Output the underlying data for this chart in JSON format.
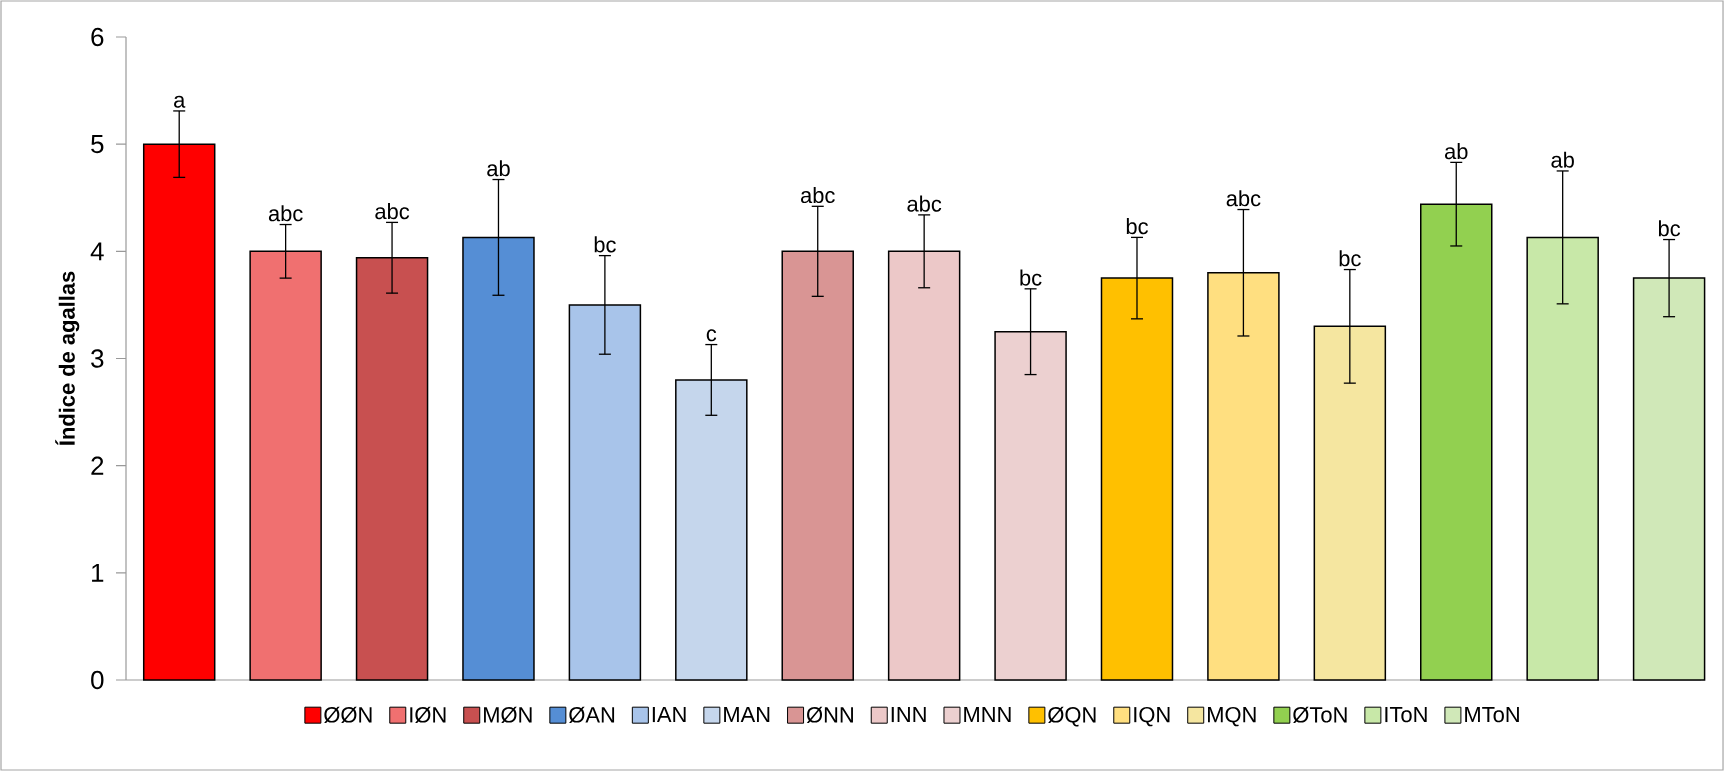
{
  "chart_data": {
    "type": "bar",
    "ylabel": "Índice de agallas",
    "categories": [
      null
    ],
    "ylim": [
      0,
      6
    ],
    "yticks": [
      0,
      1,
      2,
      3,
      4,
      5,
      6
    ],
    "legend": "bottom",
    "grid": false,
    "series": [
      {
        "name": "ØØN",
        "color": "#ff0000",
        "values": [
          5.0
        ],
        "errors": [
          0.31
        ],
        "value_labels": [
          "a"
        ]
      },
      {
        "name": "IØN",
        "color": "#f07070",
        "values": [
          4.0
        ],
        "errors": [
          0.25
        ],
        "value_labels": [
          "abc"
        ]
      },
      {
        "name": "MØN",
        "color": "#c85050",
        "values": [
          3.94
        ],
        "errors": [
          0.33
        ],
        "value_labels": [
          "abc"
        ]
      },
      {
        "name": "ØAN",
        "color": "#558ed5",
        "values": [
          4.13
        ],
        "errors": [
          0.54
        ],
        "value_labels": [
          "ab"
        ]
      },
      {
        "name": "IAN",
        "color": "#a8c4ea",
        "values": [
          3.5
        ],
        "errors": [
          0.46
        ],
        "value_labels": [
          "bc"
        ]
      },
      {
        "name": "MAN",
        "color": "#c5d6ec",
        "values": [
          2.8
        ],
        "errors": [
          0.33
        ],
        "value_labels": [
          "c"
        ]
      },
      {
        "name": "ØNN",
        "color": "#d99594",
        "values": [
          4.0
        ],
        "errors": [
          0.42
        ],
        "value_labels": [
          "abc"
        ]
      },
      {
        "name": "INN",
        "color": "#ecc8c8",
        "values": [
          4.0
        ],
        "errors": [
          0.34
        ],
        "value_labels": [
          "abc"
        ]
      },
      {
        "name": "MNN",
        "color": "#ecd0d0",
        "values": [
          3.25
        ],
        "errors": [
          0.4
        ],
        "value_labels": [
          "bc"
        ]
      },
      {
        "name": "ØQN",
        "color": "#ffc000",
        "values": [
          3.75
        ],
        "errors": [
          0.38
        ],
        "value_labels": [
          "bc"
        ]
      },
      {
        "name": "IQN",
        "color": "#ffdf80",
        "values": [
          3.8
        ],
        "errors": [
          0.59
        ],
        "value_labels": [
          "abc"
        ]
      },
      {
        "name": "MQN",
        "color": "#f5e6a0",
        "values": [
          3.3
        ],
        "errors": [
          0.53
        ],
        "value_labels": [
          "bc"
        ]
      },
      {
        "name": "ØToN",
        "color": "#92d050",
        "values": [
          4.44
        ],
        "errors": [
          0.39
        ],
        "value_labels": [
          "ab"
        ]
      },
      {
        "name": "IToN",
        "color": "#c8e8a8",
        "values": [
          4.13
        ],
        "errors": [
          0.62
        ],
        "value_labels": [
          "ab"
        ]
      },
      {
        "name": "MToN",
        "color": "#d0e8b8",
        "values": [
          3.75
        ],
        "errors": [
          0.36
        ],
        "value_labels": [
          "bc"
        ]
      }
    ]
  }
}
